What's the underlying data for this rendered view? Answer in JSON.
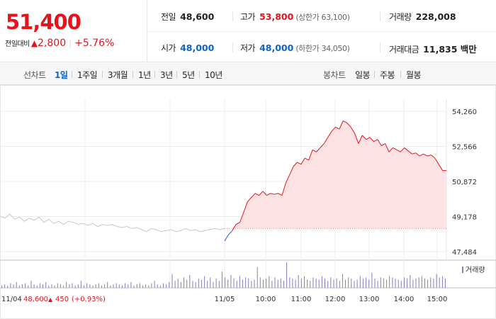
{
  "summary": {
    "price": "51,400",
    "change_label": "전일대비",
    "change_icon": "up-triangle-icon",
    "change_amount": "2,800",
    "change_percent": "+5.76%"
  },
  "stats": {
    "prev_close": {
      "label": "전일",
      "value": "48,600"
    },
    "high": {
      "label": "고가",
      "value": "53,800",
      "sub": "(상한가 63,100)"
    },
    "volume": {
      "label": "거래량",
      "value": "228,008"
    },
    "open": {
      "label": "시가",
      "value": "48,000"
    },
    "low": {
      "label": "저가",
      "value": "48,000",
      "sub": "(하한가 34,050)"
    },
    "amount": {
      "label": "거래대금",
      "value": "11,835 백만"
    }
  },
  "toolbar": {
    "line_title": "선차트",
    "line_periods": [
      "1일",
      "1주일",
      "3개월",
      "1년",
      "3년",
      "5년",
      "10년"
    ],
    "active_period": "1일",
    "candle_title": "봉차트",
    "candle_periods": [
      "일봉",
      "주봉",
      "월봉"
    ]
  },
  "colors": {
    "up": "#e5141c",
    "down": "#1261c4",
    "prev_day_line": "#c8c8c8",
    "fill": "#fde2e4",
    "volume": "#8a7bc0"
  },
  "chart_data": {
    "type": "line",
    "ylim": [
      47484,
      54260
    ],
    "y_ticks": [
      "54,260",
      "52,566",
      "50,872",
      "49,178",
      "47,484"
    ],
    "reference_price": 48600,
    "x_labels": [
      "11/04",
      "11/05",
      "10:00",
      "11:00",
      "12:00",
      "13:00",
      "14:00",
      "15:00"
    ],
    "prev_day_label": "11/04",
    "prev_day_close": "48,600",
    "prev_day_change_icon": "up-triangle-icon",
    "prev_day_change": "450",
    "prev_day_percent": "(+0.93%)",
    "legend": "거래량",
    "series": [
      {
        "values": [
          49200,
          49100,
          49300,
          49050,
          49150,
          48950,
          49100,
          49000,
          49150,
          48900,
          49050,
          48850,
          48950,
          48800,
          48950,
          48900,
          48800,
          48850,
          48750,
          48850,
          48700,
          48800,
          48750,
          48800,
          48700,
          48650,
          48700,
          48600,
          48650,
          48550,
          48450,
          48600,
          48550,
          48450,
          48500,
          48550,
          48450,
          48500,
          48600,
          48500,
          48550,
          48450,
          48500,
          48550,
          48600,
          48550,
          48600
        ]
      },
      {
        "values": [
          48000,
          48300,
          48500,
          48800,
          48900,
          49400,
          49900,
          50100,
          50300,
          50200,
          50400,
          50200,
          50300,
          50250,
          50300,
          50200,
          50800,
          51200,
          51600,
          51800,
          51700,
          52000,
          51900,
          52400,
          52300,
          52500,
          52700,
          53000,
          53300,
          53500,
          53400,
          53800,
          53700,
          53500,
          53200,
          52700,
          53100,
          52900,
          53000,
          52800,
          52900,
          52600,
          52700,
          52300,
          52500,
          52400,
          52300,
          52500,
          52350,
          52200,
          52250,
          52100,
          52200,
          52100,
          52150,
          52000,
          51700,
          51400,
          51400
        ]
      }
    ],
    "volume": [
      2,
      3,
      2,
      4,
      3,
      5,
      2,
      3,
      4,
      2,
      6,
      3,
      2,
      4,
      3,
      5,
      2,
      3,
      2,
      4,
      3,
      2,
      5,
      3,
      4,
      2,
      3,
      6,
      2,
      4,
      3,
      2,
      3,
      4,
      2,
      3,
      5,
      2,
      3,
      4,
      3,
      2,
      4,
      3,
      5,
      2,
      3,
      4,
      2,
      3,
      2,
      4,
      6,
      3,
      2,
      4,
      3,
      5,
      12,
      6,
      8,
      5,
      9,
      7,
      11,
      6,
      5,
      8,
      7,
      10,
      6,
      9,
      5,
      8,
      6,
      14,
      9,
      7,
      11,
      8,
      6,
      10,
      7,
      9,
      8,
      6,
      7,
      18,
      9,
      7,
      8,
      10,
      6,
      9,
      7,
      8,
      6,
      22,
      9,
      8,
      7,
      11,
      8,
      10,
      7,
      6,
      9,
      8,
      7,
      10,
      8,
      6,
      9,
      7,
      8,
      6,
      12,
      7,
      9,
      8,
      6,
      7,
      10,
      8,
      9,
      7,
      13,
      8,
      6,
      9,
      8,
      7,
      10,
      9,
      8,
      7,
      6,
      9,
      8,
      11,
      7,
      8,
      9,
      10,
      8,
      7,
      9,
      8,
      12,
      9,
      10,
      8
    ]
  }
}
